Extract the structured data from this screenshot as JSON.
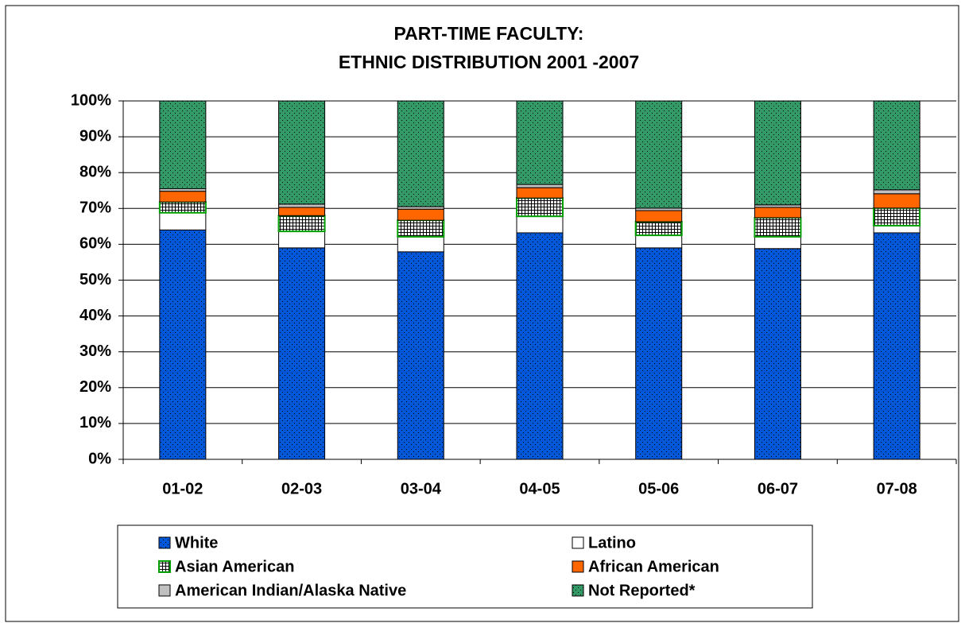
{
  "chart_data": {
    "type": "stacked_bar",
    "title": [
      "PART-TIME FACULTY:",
      "ETHNIC DISTRIBUTION 2001 -2007"
    ],
    "categories": [
      "01-02",
      "02-03",
      "03-04",
      "04-05",
      "05-06",
      "06-07",
      "07-08"
    ],
    "series": [
      {
        "name": "White",
        "color": "#0057d8",
        "pattern": "dots",
        "values": [
          64,
          59,
          57.9,
          63.2,
          59,
          58.8,
          63.2
        ]
      },
      {
        "name": "Latino",
        "color": "#ffffff",
        "values": [
          4.8,
          4.6,
          4.2,
          4.6,
          3.5,
          3.3,
          2
        ]
      },
      {
        "name": "Asian American",
        "color": "#ffffff",
        "pattern": "grid",
        "edgecolor": "#00a000",
        "values": [
          3,
          4.4,
          4.6,
          5.1,
          3.8,
          5.3,
          4.9
        ]
      },
      {
        "name": "African American",
        "color": "#ff6600",
        "values": [
          3,
          2.3,
          3.1,
          2.9,
          3.1,
          2.9,
          4
        ]
      },
      {
        "name": "American Indian/Alaska Native",
        "color": "#c0c0c0",
        "values": [
          0.7,
          0.9,
          0.7,
          0.9,
          0.7,
          0.7,
          1.1
        ]
      },
      {
        "name": "Not Reported*",
        "color": "#339966",
        "pattern": "dots",
        "values": [
          24.5,
          28.8,
          29.5,
          23.3,
          29.9,
          29,
          24.8
        ]
      }
    ],
    "ylim": [
      0,
      100
    ],
    "yticks": [
      {
        "value": 0,
        "label": "0%"
      },
      {
        "value": 10,
        "label": "10%"
      },
      {
        "value": 20,
        "label": "20%"
      },
      {
        "value": 30,
        "label": "30%"
      },
      {
        "value": 40,
        "label": "40%"
      },
      {
        "value": 50,
        "label": "50%"
      },
      {
        "value": 60,
        "label": "60%"
      },
      {
        "value": 70,
        "label": "70%"
      },
      {
        "value": 80,
        "label": "80%"
      },
      {
        "value": 90,
        "label": "90%"
      },
      {
        "value": 100,
        "label": "100%"
      }
    ],
    "grid": true,
    "legend": "bottom"
  }
}
